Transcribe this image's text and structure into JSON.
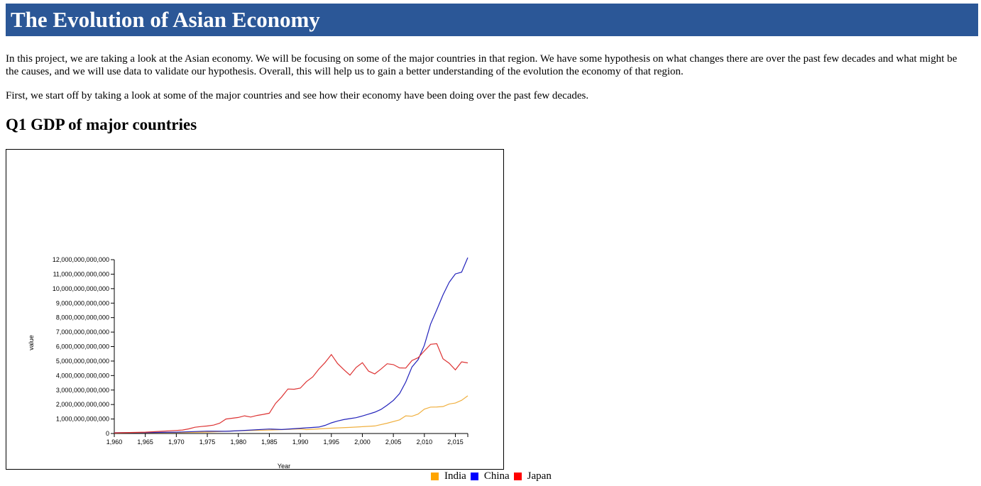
{
  "page": {
    "title": "The Evolution of Asian Economy",
    "intro": "In this project, we are taking a look at the Asian economy. We will be focusing on some of the major countries in that region. We have some hypothesis on what changes there are over the past few decades and what might be the causes, and we will use data to validate our hypothesis. Overall, this will help us to gain a better understanding of the evolution the economy of that region.",
    "lead": "First, we start off by taking a look at some of the major countries and see how their economy have been doing over the past few decades.",
    "q1_heading": "Q1 GDP of major countries"
  },
  "colors": {
    "header_bg": "#2b5797",
    "india": "#f0b040",
    "china": "#2222bb",
    "japan": "#dd3333",
    "legend_india": "#ffa500",
    "legend_china": "#0000ff",
    "legend_japan": "#ff0000"
  },
  "chart_data": {
    "type": "line",
    "title": "",
    "xlabel": "Year",
    "ylabel": "value",
    "xlim": [
      1960,
      2017
    ],
    "ylim": [
      0,
      12000000000000
    ],
    "grid": false,
    "legend_placement": "bottom-right",
    "x_ticks": [
      1960,
      1965,
      1970,
      1975,
      1980,
      1985,
      1990,
      1995,
      2000,
      2005,
      2010,
      2015
    ],
    "x_tick_labels": [
      "1,960",
      "1,965",
      "1,970",
      "1,975",
      "1,980",
      "1,985",
      "1,990",
      "1,995",
      "2,000",
      "2,005",
      "2,010",
      "2,015"
    ],
    "y_ticks": [
      0,
      1000000000000,
      2000000000000,
      3000000000000,
      4000000000000,
      5000000000000,
      6000000000000,
      7000000000000,
      8000000000000,
      9000000000000,
      10000000000000,
      11000000000000,
      12000000000000
    ],
    "y_tick_labels": [
      "0",
      "1,000,000,000,000",
      "2,000,000,000,000",
      "3,000,000,000,000",
      "4,000,000,000,000",
      "5,000,000,000,000",
      "6,000,000,000,000",
      "7,000,000,000,000",
      "8,000,000,000,000",
      "9,000,000,000,000",
      "10,000,000,000,000",
      "11,000,000,000,000",
      "12,000,000,000,000"
    ],
    "series": [
      {
        "name": "India",
        "color": "#f0b040",
        "points": [
          [
            1960,
            37000000000
          ],
          [
            1965,
            59000000000
          ],
          [
            1970,
            62000000000
          ],
          [
            1975,
            98000000000
          ],
          [
            1980,
            190000000000
          ],
          [
            1985,
            235000000000
          ],
          [
            1990,
            320000000000
          ],
          [
            1991,
            270000000000
          ],
          [
            1995,
            366000000000
          ],
          [
            1998,
            420000000000
          ],
          [
            2000,
            470000000000
          ],
          [
            2002,
            520000000000
          ],
          [
            2004,
            710000000000
          ],
          [
            2006,
            940000000000
          ],
          [
            2007,
            1220000000000
          ],
          [
            2008,
            1190000000000
          ],
          [
            2009,
            1340000000000
          ],
          [
            2010,
            1680000000000
          ],
          [
            2011,
            1820000000000
          ],
          [
            2012,
            1830000000000
          ],
          [
            2013,
            1860000000000
          ],
          [
            2014,
            2040000000000
          ],
          [
            2015,
            2100000000000
          ],
          [
            2016,
            2290000000000
          ],
          [
            2017,
            2600000000000
          ]
        ]
      },
      {
        "name": "China",
        "color": "#2222bb",
        "points": [
          [
            1960,
            59000000000
          ],
          [
            1965,
            70000000000
          ],
          [
            1970,
            92000000000
          ],
          [
            1975,
            163000000000
          ],
          [
            1978,
            150000000000
          ],
          [
            1980,
            191000000000
          ],
          [
            1985,
            309000000000
          ],
          [
            1987,
            273000000000
          ],
          [
            1990,
            361000000000
          ],
          [
            1993,
            445000000000
          ],
          [
            1994,
            564000000000
          ],
          [
            1995,
            734000000000
          ],
          [
            1996,
            864000000000
          ],
          [
            1997,
            962000000000
          ],
          [
            1998,
            1029000000000
          ],
          [
            1999,
            1094000000000
          ],
          [
            2000,
            1211000000000
          ],
          [
            2001,
            1339000000000
          ],
          [
            2002,
            1471000000000
          ],
          [
            2003,
            1660000000000
          ],
          [
            2004,
            1955000000000
          ],
          [
            2005,
            2286000000000
          ],
          [
            2006,
            2752000000000
          ],
          [
            2007,
            3550000000000
          ],
          [
            2008,
            4594000000000
          ],
          [
            2009,
            5102000000000
          ],
          [
            2010,
            6087000000000
          ],
          [
            2011,
            7552000000000
          ],
          [
            2012,
            8532000000000
          ],
          [
            2013,
            9570000000000
          ],
          [
            2014,
            10439000000000
          ],
          [
            2015,
            11016000000000
          ],
          [
            2016,
            11138000000000
          ],
          [
            2017,
            12143000000000
          ]
        ]
      },
      {
        "name": "Japan",
        "color": "#dd3333",
        "points": [
          [
            1960,
            44000000000
          ],
          [
            1965,
            91000000000
          ],
          [
            1970,
            212000000000
          ],
          [
            1971,
            240000000000
          ],
          [
            1972,
            318000000000
          ],
          [
            1973,
            432000000000
          ],
          [
            1974,
            480000000000
          ],
          [
            1975,
            521000000000
          ],
          [
            1976,
            576000000000
          ],
          [
            1977,
            709000000000
          ],
          [
            1978,
            997000000000
          ],
          [
            1979,
            1055000000000
          ],
          [
            1980,
            1105000000000
          ],
          [
            1981,
            1218000000000
          ],
          [
            1982,
            1134000000000
          ],
          [
            1983,
            1243000000000
          ],
          [
            1984,
            1318000000000
          ],
          [
            1985,
            1399000000000
          ],
          [
            1986,
            2079000000000
          ],
          [
            1987,
            2532000000000
          ],
          [
            1988,
            3072000000000
          ],
          [
            1989,
            3054000000000
          ],
          [
            1990,
            3133000000000
          ],
          [
            1991,
            3584000000000
          ],
          [
            1992,
            3908000000000
          ],
          [
            1993,
            4454000000000
          ],
          [
            1994,
            4907000000000
          ],
          [
            1995,
            5449000000000
          ],
          [
            1996,
            4833000000000
          ],
          [
            1997,
            4415000000000
          ],
          [
            1998,
            4033000000000
          ],
          [
            1999,
            4562000000000
          ],
          [
            2000,
            4888000000000
          ],
          [
            2001,
            4304000000000
          ],
          [
            2002,
            4115000000000
          ],
          [
            2003,
            4445000000000
          ],
          [
            2004,
            4815000000000
          ],
          [
            2005,
            4755000000000
          ],
          [
            2006,
            4530000000000
          ],
          [
            2007,
            4515000000000
          ],
          [
            2008,
            5038000000000
          ],
          [
            2009,
            5231000000000
          ],
          [
            2010,
            5700000000000
          ],
          [
            2011,
            6157000000000
          ],
          [
            2012,
            6203000000000
          ],
          [
            2013,
            5156000000000
          ],
          [
            2014,
            4850000000000
          ],
          [
            2015,
            4395000000000
          ],
          [
            2016,
            4949000000000
          ],
          [
            2017,
            4872000000000
          ]
        ]
      }
    ]
  },
  "legend": [
    {
      "label": "India",
      "color": "#ffa500"
    },
    {
      "label": "China",
      "color": "#0000ff"
    },
    {
      "label": "Japan",
      "color": "#ff0000"
    }
  ]
}
